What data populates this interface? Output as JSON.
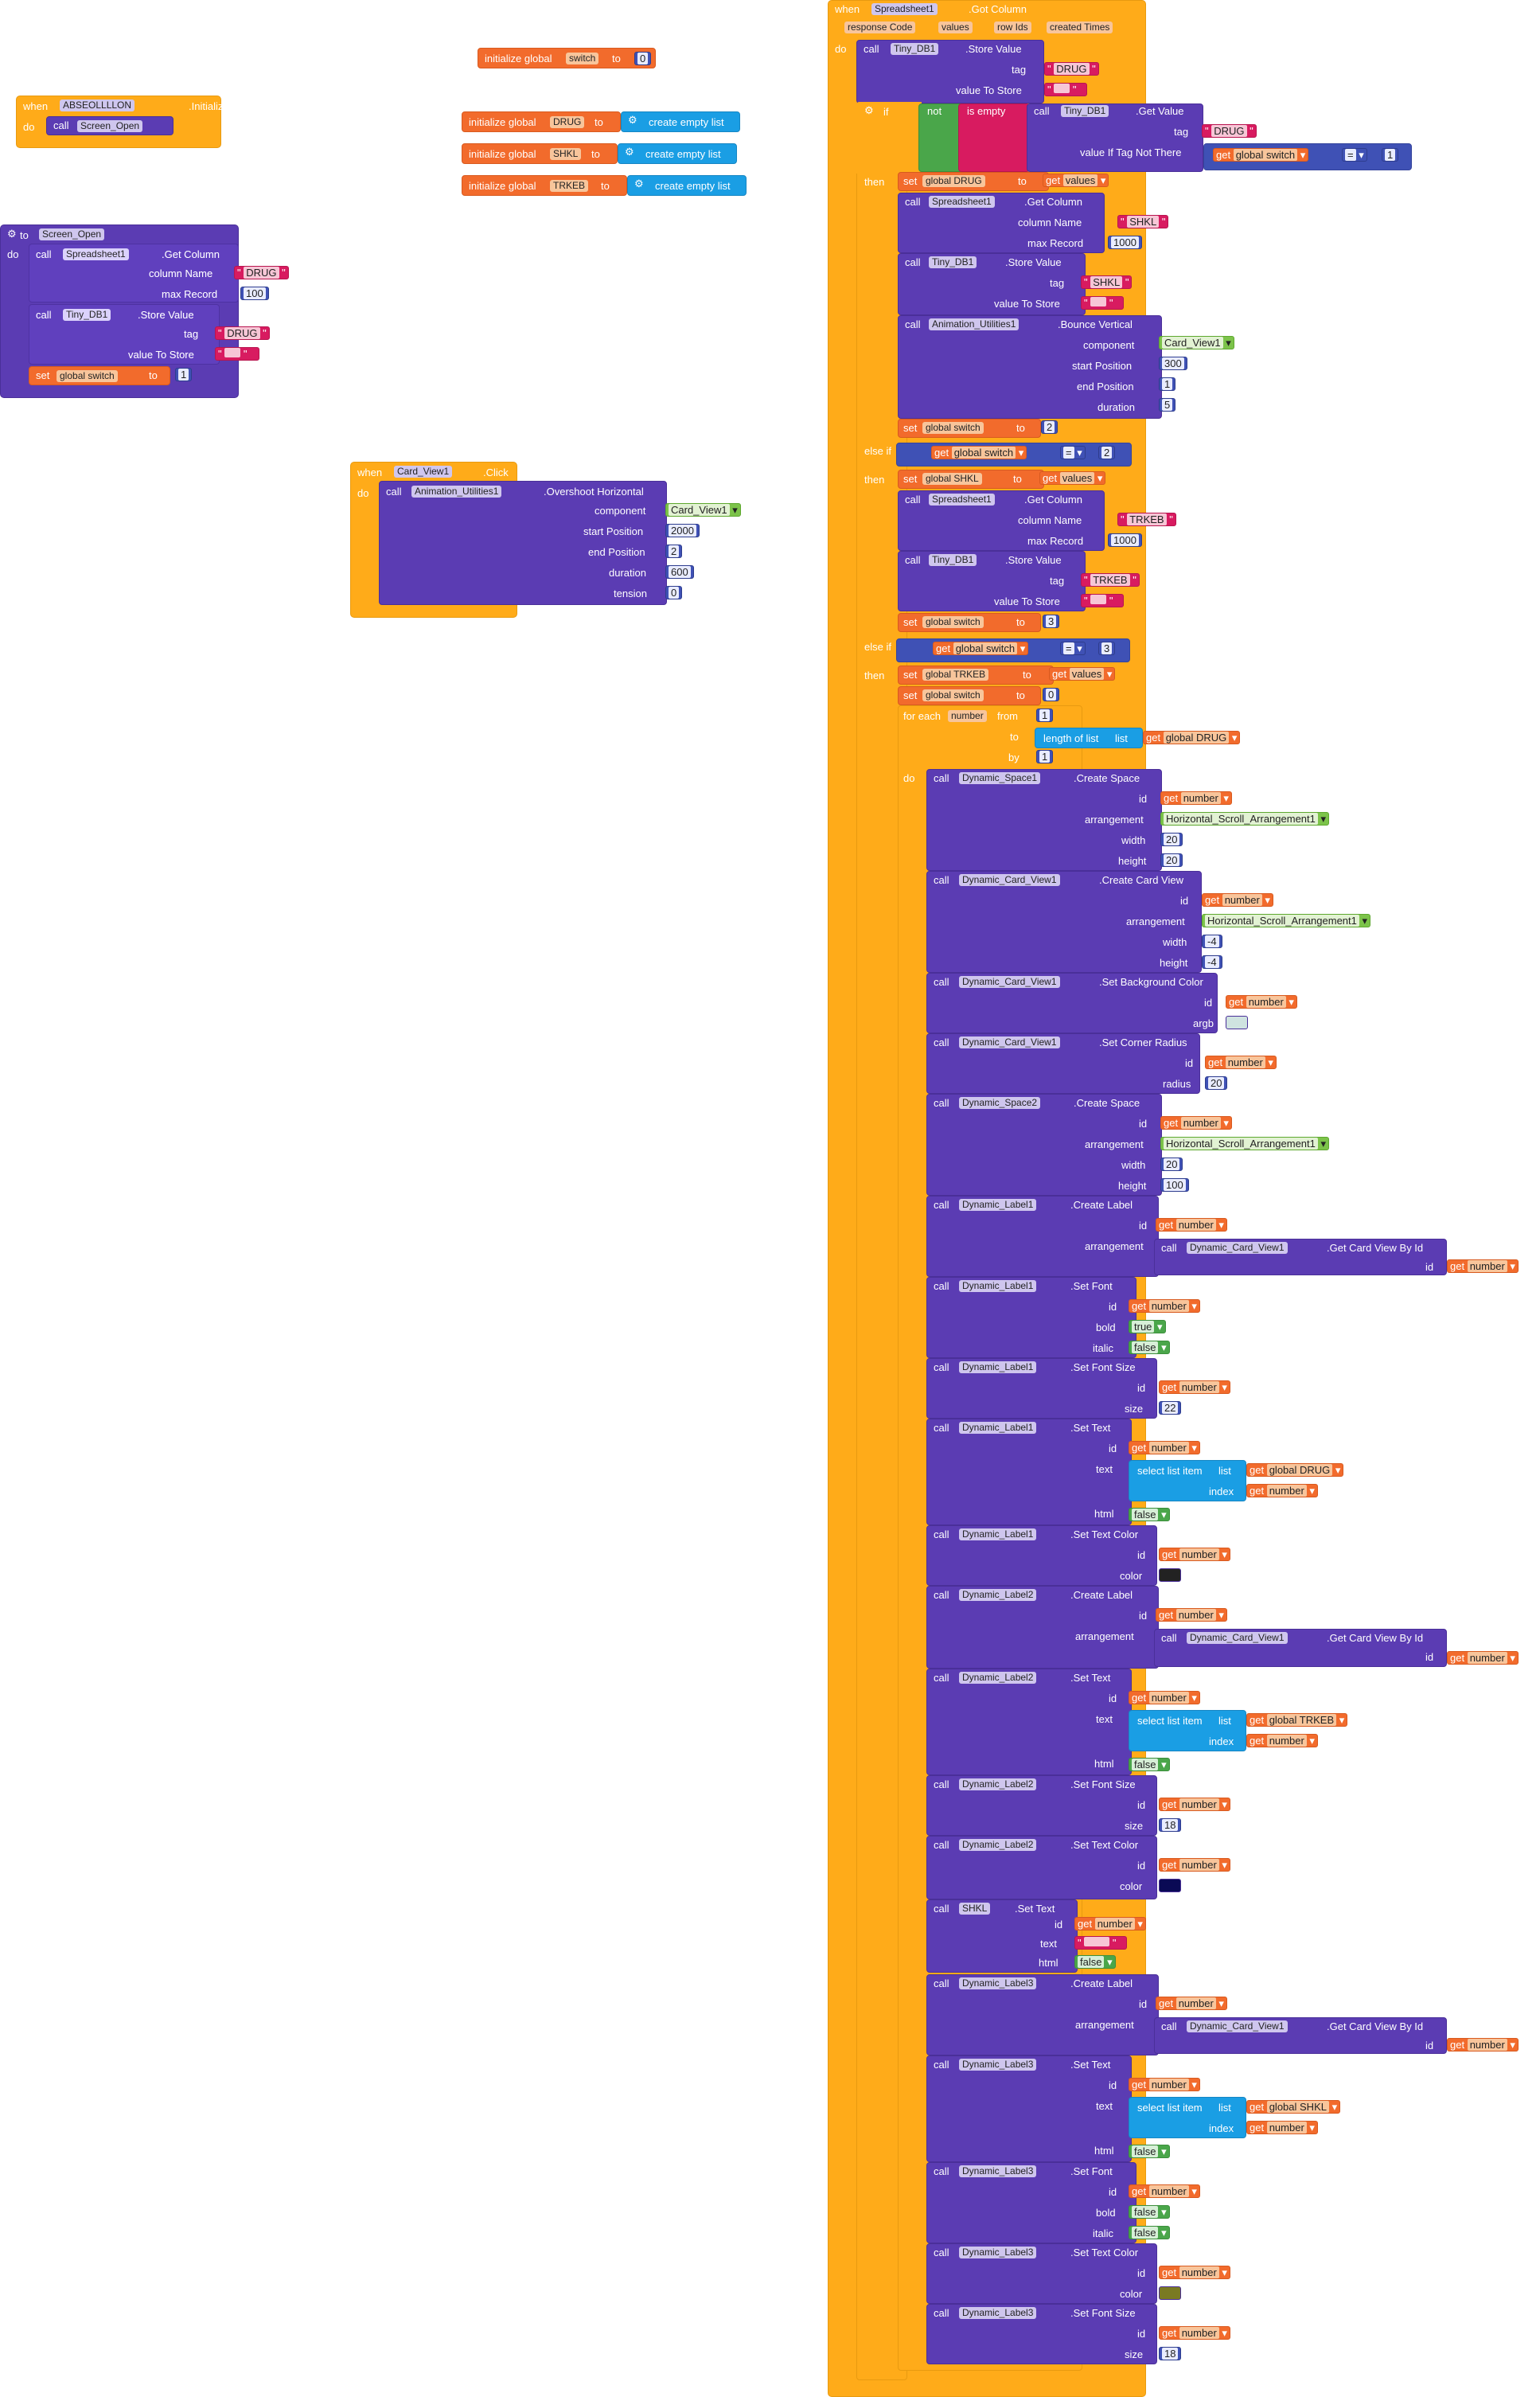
{
  "k": {
    "when": "when",
    "do": "do",
    "call": "call",
    "set": "set",
    "to": "to",
    "get": "get",
    "if": "if",
    "then": "then",
    "else_if": "else if",
    "not": "not",
    "is_empty": "is empty",
    "for_each": "for each",
    "from": "from",
    "by": "by",
    "init_global": "initialize global",
    "create_empty_list": "create empty list",
    "select_list_item": "select list item",
    "list": "list",
    "index": "index",
    "length_of_list": "length of list",
    "eq": "="
  },
  "b1": {
    "comp": "ABSEOLLLLON",
    "event": ".Initialize",
    "proc": "Screen_Open"
  },
  "init": {
    "switch_name": "switch",
    "switch_val": "0",
    "drug": "DRUG",
    "shkl": "SHKL",
    "trkeb": "TRKEB"
  },
  "b2": {
    "proc": "Screen_Open",
    "ss": "Spreadsheet1",
    "getcol": ".Get Column",
    "colname_lbl": "column Name",
    "colname": "DRUG",
    "maxrec_lbl": "max Record",
    "maxrec": "100",
    "db": "Tiny_DB1",
    "store": ".Store Value",
    "tag_lbl": "tag",
    "tag": "DRUG",
    "vts_lbl": "value To Store",
    "vts": "",
    "setvar": "global switch",
    "setval": "1"
  },
  "b3": {
    "comp": "Card_View1",
    "event": ".Click",
    "anim": "Animation_Utilities1",
    "method": ".Overshoot Horizontal",
    "component_lbl": "component",
    "component": "Card_View1",
    "start_lbl": "start Position",
    "start": "2000",
    "end_lbl": "end Position",
    "end": "2",
    "dur_lbl": "duration",
    "dur": "600",
    "tension_lbl": "tension",
    "tension": "0"
  },
  "b4": {
    "comp": "Spreadsheet1",
    "event": ".Got Column",
    "params": [
      "response Code",
      "values",
      "row Ids",
      "created Times"
    ],
    "s1": {
      "db": "Tiny_DB1",
      "store": ".Store Value",
      "tag": "DRUG",
      "vts": ""
    },
    "if": {
      "getvalue": ".Get Value",
      "tag": "DRUG",
      "vint_lbl": "value If Tag Not There",
      "sw": "global switch",
      "eqv": "1"
    },
    "t1": {
      "drug": "global DRUG",
      "values": "values",
      "ss": "Spreadsheet1",
      "getcol": ".Get Column",
      "colname": "SHKL",
      "maxrec": "1000",
      "db": "Tiny_DB1",
      "store": ".Store Value",
      "tag": "SHKL",
      "vts": "",
      "anim": "Animation_Utilities1",
      "bounce": ".Bounce Vertical",
      "component": "Card_View1",
      "start": "300",
      "end": "1",
      "dur": "5",
      "sw": "global switch",
      "swval": "2"
    },
    "e1": {
      "sw": "global switch",
      "eqv": "2",
      "shkl": "global SHKL",
      "values": "values",
      "colname": "TRKEB",
      "maxrec": "1000",
      "tag": "TRKEB",
      "vts": "",
      "swval": "3"
    },
    "e2": {
      "sw": "global switch",
      "eqv": "3",
      "trkeb": "global TRKEB",
      "values": "values",
      "swval": "0"
    },
    "fe": {
      "var": "number",
      "from": "1",
      "drug": "global DRUG",
      "by": "1"
    },
    "loop": {
      "space1": {
        "comp": "Dynamic_Space1",
        "method": ".Create Space",
        "id": "number",
        "arr": "Horizontal_Scroll_Arrangement1",
        "width": "20",
        "height": "20"
      },
      "card": {
        "comp": "Dynamic_Card_View1",
        "method": ".Create Card View",
        "id": "number",
        "arr": "Horizontal_Scroll_Arrangement1",
        "width": "-4",
        "height": "-4"
      },
      "bg": {
        "comp": "Dynamic_Card_View1",
        "method": ".Set Background Color",
        "id": "number",
        "argb_lbl": "argb"
      },
      "corner": {
        "comp": "Dynamic_Card_View1",
        "method": ".Set Corner Radius",
        "id": "number",
        "radius_lbl": "radius",
        "radius": "20"
      },
      "space2": {
        "comp": "Dynamic_Space2",
        "method": ".Create Space",
        "id": "number",
        "arr": "Horizontal_Scroll_Arrangement1",
        "width": "20",
        "height": "100"
      },
      "l1c": {
        "comp": "Dynamic_Label1",
        "method": ".Create Label",
        "id": "number",
        "arr_comp": "Dynamic_Card_View1",
        "arr_method": ".Get Card View By Id",
        "arr_id": "number"
      },
      "l1f": {
        "comp": "Dynamic_Label1",
        "method": ".Set Font",
        "id": "number",
        "bold": "true",
        "italic": "false"
      },
      "l1s": {
        "comp": "Dynamic_Label1",
        "method": ".Set Font Size",
        "id": "number",
        "size": "22"
      },
      "l1t": {
        "comp": "Dynamic_Label1",
        "method": ".Set Text",
        "id": "number",
        "list": "global DRUG",
        "index": "number",
        "html": "false"
      },
      "l1col": {
        "comp": "Dynamic_Label1",
        "method": ".Set Text Color",
        "id": "number",
        "color_lbl": "color"
      },
      "l2c": {
        "comp": "Dynamic_Label2",
        "method": ".Create Label",
        "id": "number",
        "arr_comp": "Dynamic_Card_View1",
        "arr_method": ".Get Card View By Id",
        "arr_id": "number"
      },
      "l2t": {
        "comp": "Dynamic_Label2",
        "method": ".Set Text",
        "id": "number",
        "list": "global TRKEB",
        "index": "number",
        "html": "false"
      },
      "l2s": {
        "comp": "Dynamic_Label2",
        "method": ".Set Font Size",
        "id": "number",
        "size": "18"
      },
      "l2col": {
        "comp": "Dynamic_Label2",
        "method": ".Set Text Color",
        "id": "number"
      },
      "shkl": {
        "comp": "SHKL",
        "method": ".Set Text",
        "id": "number",
        "text": "",
        "html": "false"
      },
      "l3c": {
        "comp": "Dynamic_Label3",
        "method": ".Create Label",
        "id": "number",
        "arr_comp": "Dynamic_Card_View1",
        "arr_method": ".Get Card View By Id",
        "arr_id": "number"
      },
      "l3t": {
        "comp": "Dynamic_Label3",
        "method": ".Set Text",
        "id": "number",
        "list": "global SHKL",
        "index": "number",
        "html": "false"
      },
      "l3f": {
        "comp": "Dynamic_Label3",
        "method": ".Set Font",
        "id": "number",
        "bold": "false",
        "italic": "false"
      },
      "l3col": {
        "comp": "Dynamic_Label3",
        "method": ".Set Text Color",
        "id": "number"
      },
      "l3s": {
        "comp": "Dynamic_Label3",
        "method": ".Set Font Size",
        "id": "number",
        "size": "18"
      }
    }
  },
  "colors": {
    "event": "#ffab19",
    "call": "#5b3cb3",
    "var": "#f26b2c",
    "text": "#d81b60",
    "math": "#3f51b5",
    "list": "#1a9ee4",
    "logic": "#4aa64a",
    "swatch_bg": "#cfe3e0",
    "swatch_l1": "#222222",
    "swatch_l2": "#0a0a55",
    "swatch_l3": "#7a7a22"
  }
}
